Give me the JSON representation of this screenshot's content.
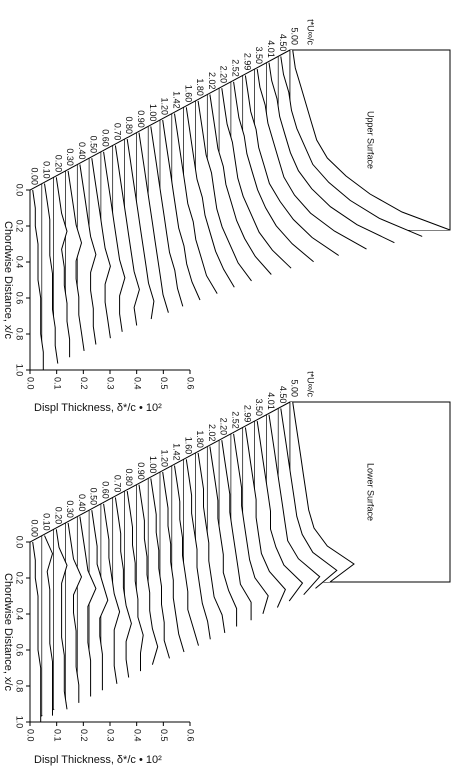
{
  "chart_data": [
    {
      "type": "waterfall3d",
      "panel_label": "Upper Surface",
      "x_label": "Chordwise Distance, x/c",
      "y_label": "Displ Thickness, δ*/c • 10²",
      "depth_label": "t*U∞/c",
      "color": "#000000",
      "x": [
        0,
        0.1,
        0.2,
        0.3,
        0.4,
        0.5,
        0.6,
        0.7,
        0.8,
        0.9,
        1.0
      ],
      "xlim": [
        0,
        1
      ],
      "ylim": [
        0,
        0.6
      ],
      "xticks": [
        {
          "value": 0,
          "label": "0.0"
        },
        {
          "value": 0.2,
          "label": "0.2"
        },
        {
          "value": 0.4,
          "label": "0.4"
        },
        {
          "value": 0.6,
          "label": "0.6"
        },
        {
          "value": 0.8,
          "label": "0.8"
        },
        {
          "value": 1,
          "label": "1.0"
        }
      ],
      "yticks": [
        {
          "value": 0,
          "label": "0.0"
        },
        {
          "value": 0.1,
          "label": "0.1"
        },
        {
          "value": 0.2,
          "label": "0.2"
        },
        {
          "value": 0.3,
          "label": "0.3"
        },
        {
          "value": 0.4,
          "label": "0.4"
        },
        {
          "value": 0.5,
          "label": "0.5"
        },
        {
          "value": 0.6,
          "label": "0.6"
        }
      ],
      "series": [
        {
          "name": "0.00",
          "values": [
            0.01,
            0.02,
            0.02,
            0.03,
            0.03,
            0.03,
            0.04,
            0.04,
            0.04,
            0.05,
            0.05
          ]
        },
        {
          "name": "0.10",
          "values": [
            0.01,
            0.02,
            0.03,
            0.03,
            0.03,
            0.04,
            0.04,
            0.04,
            0.05,
            0.05,
            0.06
          ]
        },
        {
          "name": "0.20",
          "values": [
            0.01,
            0.02,
            0.03,
            0.05,
            0.03,
            0.04,
            0.04,
            0.05,
            0.05,
            0.06,
            0.06
          ]
        },
        {
          "name": "0.30",
          "values": [
            0.01,
            0.02,
            0.03,
            0.04,
            0.06,
            0.04,
            0.04,
            0.05,
            0.05,
            0.06,
            0.07
          ]
        },
        {
          "name": "0.40",
          "values": [
            0.01,
            0.02,
            0.03,
            0.04,
            0.05,
            0.07,
            0.05,
            0.05,
            0.06,
            0.06,
            0.07
          ]
        },
        {
          "name": "0.50",
          "values": [
            0.01,
            0.02,
            0.03,
            0.04,
            0.05,
            0.06,
            0.08,
            0.06,
            0.06,
            0.07,
            0.08
          ]
        },
        {
          "name": "0.60",
          "values": [
            0.01,
            0.02,
            0.03,
            0.04,
            0.05,
            0.06,
            0.07,
            0.09,
            0.07,
            0.07,
            0.08
          ]
        },
        {
          "name": "0.70",
          "values": [
            0.01,
            0.02,
            0.03,
            0.04,
            0.05,
            0.06,
            0.07,
            0.08,
            0.1,
            0.08,
            0.09
          ]
        },
        {
          "name": "0.80",
          "values": [
            0.01,
            0.02,
            0.03,
            0.04,
            0.05,
            0.06,
            0.07,
            0.08,
            0.09,
            0.11,
            0.1
          ]
        },
        {
          "name": "0.90",
          "values": [
            0.01,
            0.02,
            0.03,
            0.04,
            0.05,
            0.06,
            0.07,
            0.08,
            0.09,
            0.1,
            0.12
          ]
        },
        {
          "name": "1.00",
          "values": [
            0.01,
            0.02,
            0.03,
            0.04,
            0.05,
            0.06,
            0.07,
            0.08,
            0.1,
            0.11,
            0.13
          ]
        },
        {
          "name": "1.20",
          "values": [
            0.01,
            0.02,
            0.03,
            0.04,
            0.05,
            0.06,
            0.07,
            0.09,
            0.1,
            0.12,
            0.15
          ]
        },
        {
          "name": "1.42",
          "values": [
            0.01,
            0.02,
            0.03,
            0.04,
            0.05,
            0.06,
            0.08,
            0.09,
            0.11,
            0.13,
            0.17
          ]
        },
        {
          "name": "1.60",
          "values": [
            0.01,
            0.02,
            0.03,
            0.04,
            0.05,
            0.07,
            0.08,
            0.1,
            0.12,
            0.15,
            0.19
          ]
        },
        {
          "name": "1.80",
          "values": [
            0.01,
            0.02,
            0.03,
            0.04,
            0.06,
            0.07,
            0.08,
            0.1,
            0.13,
            0.16,
            0.21
          ]
        },
        {
          "name": "2.02",
          "values": [
            0.01,
            0.02,
            0.03,
            0.04,
            0.06,
            0.07,
            0.09,
            0.11,
            0.14,
            0.18,
            0.24
          ]
        },
        {
          "name": "2.20",
          "values": [
            0.01,
            0.02,
            0.03,
            0.05,
            0.06,
            0.07,
            0.09,
            0.12,
            0.15,
            0.2,
            0.27
          ]
        },
        {
          "name": "2.52",
          "values": [
            0.01,
            0.02,
            0.03,
            0.05,
            0.06,
            0.08,
            0.1,
            0.13,
            0.17,
            0.23,
            0.31
          ]
        },
        {
          "name": "2.99",
          "values": [
            0.01,
            0.02,
            0.03,
            0.05,
            0.06,
            0.08,
            0.1,
            0.14,
            0.19,
            0.26,
            0.36
          ]
        },
        {
          "name": "3.50",
          "values": [
            0.01,
            0.02,
            0.04,
            0.05,
            0.07,
            0.09,
            0.11,
            0.15,
            0.21,
            0.3,
            0.42
          ]
        },
        {
          "name": "4.01",
          "values": [
            0.01,
            0.02,
            0.04,
            0.05,
            0.07,
            0.09,
            0.12,
            0.17,
            0.24,
            0.34,
            0.48
          ]
        },
        {
          "name": "4.50",
          "values": [
            0.01,
            0.02,
            0.04,
            0.05,
            0.07,
            0.1,
            0.13,
            0.19,
            0.27,
            0.38,
            0.54
          ]
        },
        {
          "name": "5.00",
          "values": [
            0.01,
            0.02,
            0.04,
            0.06,
            0.08,
            0.1,
            0.14,
            0.21,
            0.3,
            0.42,
            0.6
          ]
        }
      ]
    },
    {
      "type": "waterfall3d",
      "panel_label": "Lower Surface",
      "x_label": "Chordwise Distance, x/c",
      "y_label": "Displ Thickness, δ*/c • 10²",
      "depth_label": "t*U∞/c",
      "color": "#000000",
      "x": [
        0,
        0.1,
        0.2,
        0.3,
        0.4,
        0.5,
        0.6,
        0.7,
        0.8,
        0.9,
        1.0
      ],
      "xlim": [
        0,
        1
      ],
      "ylim": [
        0,
        0.6
      ],
      "xticks": [
        {
          "value": 0,
          "label": "0.0"
        },
        {
          "value": 0.2,
          "label": "0.2"
        },
        {
          "value": 0.4,
          "label": "0.4"
        },
        {
          "value": 0.6,
          "label": "0.6"
        },
        {
          "value": 0.8,
          "label": "0.8"
        },
        {
          "value": 1,
          "label": "1.0"
        }
      ],
      "yticks": [
        {
          "value": 0,
          "label": "0.0"
        },
        {
          "value": 0.1,
          "label": "0.1"
        },
        {
          "value": 0.2,
          "label": "0.2"
        },
        {
          "value": 0.3,
          "label": "0.3"
        },
        {
          "value": 0.4,
          "label": "0.4"
        },
        {
          "value": 0.5,
          "label": "0.5"
        },
        {
          "value": 0.6,
          "label": "0.6"
        }
      ],
      "series": [
        {
          "name": "0.00",
          "values": [
            0.01,
            0.02,
            0.02,
            0.03,
            0.03,
            0.03,
            0.03,
            0.04,
            0.04,
            0.04,
            0.04
          ]
        },
        {
          "name": "0.10",
          "values": [
            0.01,
            0.04,
            0.02,
            0.03,
            0.03,
            0.03,
            0.03,
            0.04,
            0.04,
            0.04,
            0.04
          ]
        },
        {
          "name": "0.20",
          "values": [
            0.01,
            0.02,
            0.05,
            0.03,
            0.03,
            0.03,
            0.03,
            0.04,
            0.04,
            0.04,
            0.05
          ]
        },
        {
          "name": "0.30",
          "values": [
            0.01,
            0.02,
            0.03,
            0.06,
            0.03,
            0.03,
            0.04,
            0.04,
            0.04,
            0.05,
            0.05
          ]
        },
        {
          "name": "0.40",
          "values": [
            0.01,
            0.02,
            0.03,
            0.04,
            0.07,
            0.04,
            0.04,
            0.04,
            0.05,
            0.05,
            0.05
          ]
        },
        {
          "name": "0.50",
          "values": [
            0.01,
            0.02,
            0.03,
            0.03,
            0.05,
            0.07,
            0.04,
            0.04,
            0.05,
            0.05,
            0.05
          ]
        },
        {
          "name": "0.60",
          "values": [
            0.01,
            0.02,
            0.03,
            0.03,
            0.04,
            0.05,
            0.07,
            0.05,
            0.05,
            0.05,
            0.06
          ]
        },
        {
          "name": "0.70",
          "values": [
            0.01,
            0.02,
            0.03,
            0.03,
            0.04,
            0.04,
            0.05,
            0.07,
            0.05,
            0.05,
            0.06
          ]
        },
        {
          "name": "0.80",
          "values": [
            0.01,
            0.02,
            0.03,
            0.03,
            0.04,
            0.04,
            0.05,
            0.05,
            0.07,
            0.06,
            0.06
          ]
        },
        {
          "name": "0.90",
          "values": [
            0.01,
            0.02,
            0.03,
            0.03,
            0.04,
            0.04,
            0.05,
            0.05,
            0.06,
            0.08,
            0.06
          ]
        },
        {
          "name": "1.00",
          "values": [
            0.01,
            0.02,
            0.03,
            0.03,
            0.04,
            0.04,
            0.05,
            0.05,
            0.06,
            0.06,
            0.08
          ]
        },
        {
          "name": "1.20",
          "values": [
            0.01,
            0.02,
            0.03,
            0.03,
            0.04,
            0.04,
            0.05,
            0.05,
            0.06,
            0.07,
            0.09
          ]
        },
        {
          "name": "1.42",
          "values": [
            0.01,
            0.02,
            0.03,
            0.03,
            0.04,
            0.04,
            0.05,
            0.06,
            0.06,
            0.08,
            0.1
          ]
        },
        {
          "name": "1.60",
          "values": [
            0.01,
            0.02,
            0.03,
            0.03,
            0.04,
            0.05,
            0.05,
            0.06,
            0.07,
            0.09,
            0.1
          ]
        },
        {
          "name": "1.80",
          "values": [
            0.01,
            0.02,
            0.03,
            0.03,
            0.04,
            0.05,
            0.05,
            0.06,
            0.07,
            0.1,
            0.11
          ]
        },
        {
          "name": "2.02",
          "values": [
            0.01,
            0.02,
            0.03,
            0.04,
            0.04,
            0.05,
            0.06,
            0.06,
            0.08,
            0.11,
            0.11
          ]
        },
        {
          "name": "2.20",
          "values": [
            0.01,
            0.02,
            0.03,
            0.04,
            0.04,
            0.05,
            0.06,
            0.07,
            0.08,
            0.12,
            0.12
          ]
        },
        {
          "name": "2.52",
          "values": [
            0.01,
            0.02,
            0.03,
            0.04,
            0.04,
            0.05,
            0.06,
            0.07,
            0.09,
            0.14,
            0.12
          ]
        },
        {
          "name": "2.99",
          "values": [
            0.01,
            0.02,
            0.03,
            0.04,
            0.05,
            0.05,
            0.06,
            0.07,
            0.1,
            0.16,
            0.13
          ]
        },
        {
          "name": "3.50",
          "values": [
            0.01,
            0.02,
            0.03,
            0.04,
            0.05,
            0.06,
            0.06,
            0.08,
            0.11,
            0.18,
            0.13
          ]
        },
        {
          "name": "4.01",
          "values": [
            0.01,
            0.02,
            0.03,
            0.04,
            0.05,
            0.06,
            0.07,
            0.08,
            0.12,
            0.2,
            0.14
          ]
        },
        {
          "name": "4.50",
          "values": [
            0.01,
            0.02,
            0.03,
            0.04,
            0.05,
            0.06,
            0.07,
            0.09,
            0.13,
            0.22,
            0.14
          ]
        },
        {
          "name": "5.00",
          "values": [
            0.01,
            0.02,
            0.03,
            0.04,
            0.05,
            0.06,
            0.07,
            0.09,
            0.14,
            0.24,
            0.15
          ]
        }
      ]
    }
  ]
}
